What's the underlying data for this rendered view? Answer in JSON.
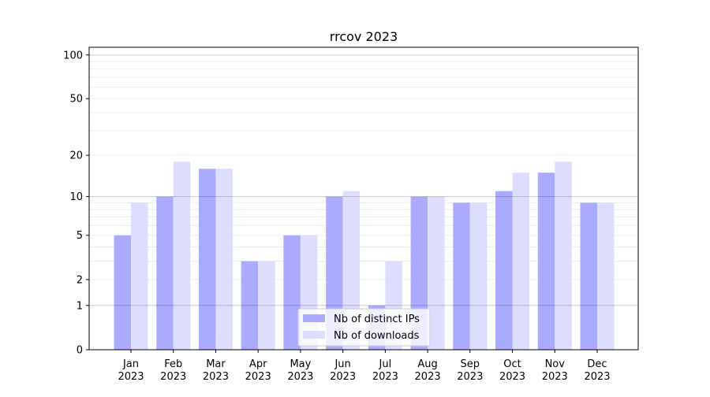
{
  "chart_data": {
    "type": "bar",
    "title": "rrcov 2023",
    "xlabel": "",
    "ylabel": "",
    "y_scale": "log(1+y)",
    "ylim": [
      0,
      113
    ],
    "yticks": [
      0,
      1,
      2,
      5,
      10,
      20,
      50,
      100
    ],
    "ytick_labels": [
      "0",
      "1",
      "2",
      "5",
      "10",
      "20",
      "50",
      "100"
    ],
    "grid": true,
    "legend_position": "bottom-center",
    "categories": [
      {
        "month": "Jan",
        "year": "2023"
      },
      {
        "month": "Feb",
        "year": "2023"
      },
      {
        "month": "Mar",
        "year": "2023"
      },
      {
        "month": "Apr",
        "year": "2023"
      },
      {
        "month": "May",
        "year": "2023"
      },
      {
        "month": "Jun",
        "year": "2023"
      },
      {
        "month": "Jul",
        "year": "2023"
      },
      {
        "month": "Aug",
        "year": "2023"
      },
      {
        "month": "Sep",
        "year": "2023"
      },
      {
        "month": "Oct",
        "year": "2023"
      },
      {
        "month": "Nov",
        "year": "2023"
      },
      {
        "month": "Dec",
        "year": "2023"
      }
    ],
    "series": [
      {
        "name": "Nb of distinct IPs",
        "color": "#aaaaff",
        "values": [
          5,
          10,
          16,
          3,
          5,
          10,
          1,
          10,
          9,
          11,
          15,
          9
        ]
      },
      {
        "name": "Nb of downloads",
        "color": "#ddddff",
        "values": [
          9,
          18,
          16,
          3,
          5,
          11,
          3,
          10,
          9,
          15,
          18,
          9
        ]
      }
    ]
  }
}
